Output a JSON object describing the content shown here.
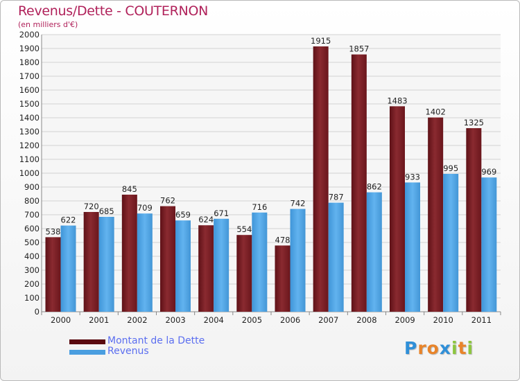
{
  "header": {
    "title": "Revenus/Dette - COUTERNON",
    "subtitle": "(en milliers d'€)"
  },
  "chart_data": {
    "type": "bar",
    "title": "Revenus/Dette - COUTERNON",
    "subtitle": "(en milliers d'€)",
    "xlabel": "",
    "ylabel": "",
    "ylim": [
      0,
      2000
    ],
    "ytick_step": 100,
    "grid": true,
    "legend_position": "bottom-left",
    "categories": [
      "2000",
      "2001",
      "2002",
      "2003",
      "2004",
      "2005",
      "2006",
      "2007",
      "2008",
      "2009",
      "2010",
      "2011"
    ],
    "series": [
      {
        "name": "Montant de la Dette",
        "color": "#7a1c22",
        "values": [
          538,
          720,
          845,
          762,
          624,
          554,
          478,
          1915,
          1857,
          1483,
          1402,
          1325
        ]
      },
      {
        "name": "Revenus",
        "color": "#4ea3e3",
        "values": [
          622,
          685,
          709,
          659,
          671,
          716,
          742,
          787,
          862,
          933,
          995,
          969
        ]
      }
    ]
  },
  "legend": {
    "items": [
      {
        "label": "Montant de la Dette",
        "color": "#5a0a10"
      },
      {
        "label": "Revenus",
        "color": "#4a9ee0"
      }
    ]
  },
  "logo": {
    "letters": [
      "P",
      "r",
      "o",
      "x",
      "i",
      "t",
      "i"
    ],
    "colors": [
      "#2f8fd8",
      "#e8842a",
      "#e8842a",
      "#2f8fd8",
      "#8dc63f",
      "#e8842a",
      "#8dc63f"
    ]
  }
}
